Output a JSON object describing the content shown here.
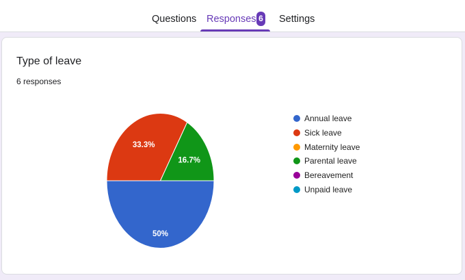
{
  "tabs": [
    {
      "label": "Questions",
      "active": false
    },
    {
      "label": "Responses",
      "active": true,
      "badge": "6"
    },
    {
      "label": "Settings",
      "active": false
    }
  ],
  "question": {
    "title": "Type of leave",
    "response_count": "6 responses"
  },
  "colors": {
    "accent": "#673ab7",
    "background": "#f0ebf8"
  },
  "chart_data": {
    "type": "pie",
    "title": "Type of leave",
    "subtitle": "6 responses",
    "categories": [
      "Annual leave",
      "Sick leave",
      "Maternity leave",
      "Parental leave",
      "Bereavement",
      "Unpaid leave"
    ],
    "values": [
      3,
      2,
      0,
      1,
      0,
      0
    ],
    "percent_labels": [
      "50%",
      "33.3%",
      "",
      "16.7%",
      "",
      ""
    ],
    "colors": [
      "#3366cc",
      "#dc3912",
      "#ff9900",
      "#109618",
      "#990099",
      "#0099c6"
    ],
    "legend_position": "right"
  }
}
